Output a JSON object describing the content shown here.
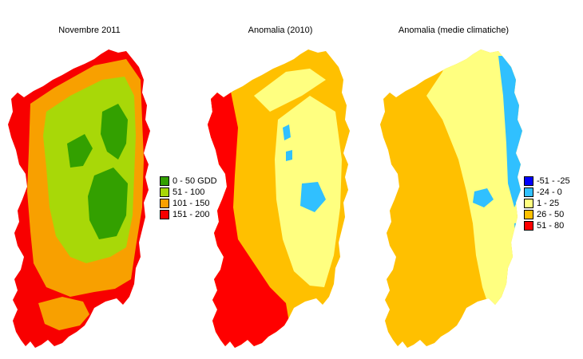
{
  "panels": [
    {
      "title": "Novembre 2011"
    },
    {
      "title": "Anomalia (2010)"
    },
    {
      "title": "Anomalia (medie climatiche)"
    }
  ],
  "legend_gdd": [
    {
      "label": "0 - 50 GDD",
      "color": "#33a000"
    },
    {
      "label": "51 - 100",
      "color": "#a8d808"
    },
    {
      "label": "101 - 150",
      "color": "#f8a000"
    },
    {
      "label": "151 - 200",
      "color": "#f80000"
    }
  ],
  "legend_anomaly": [
    {
      "label": "-51 - -25",
      "color": "#0000ff"
    },
    {
      "label": "-24 - 0",
      "color": "#30c0ff"
    },
    {
      "label": "1 - 25",
      "color": "#ffff80"
    },
    {
      "label": "26 - 50",
      "color": "#ffc000"
    },
    {
      "label": "51 - 80",
      "color": "#ff0000"
    }
  ]
}
